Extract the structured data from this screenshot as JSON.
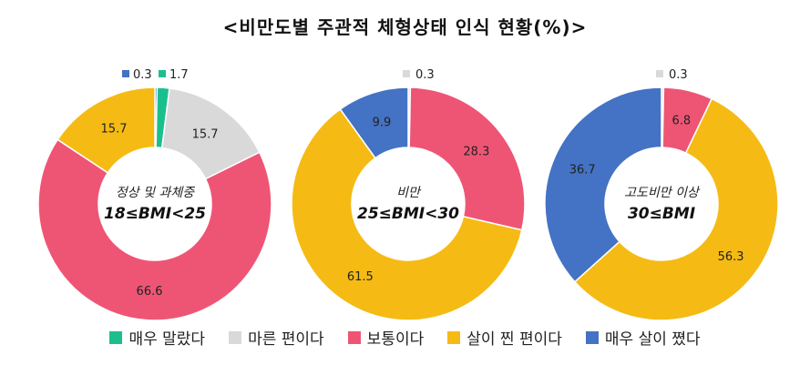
{
  "title": "<비만도별 주관적 체형상태 인식 현황(%)>",
  "colors": {
    "very_thin": "#1bbf8e",
    "thin": "#d9d9d9",
    "normal": "#ee5575",
    "little_fat": "#f5bb14",
    "very_fat": "#4472c4"
  },
  "legend": [
    {
      "key": "very_thin",
      "label": "매우 말랐다"
    },
    {
      "key": "thin",
      "label": "마른 편이다"
    },
    {
      "key": "normal",
      "label": "보통이다"
    },
    {
      "key": "little_fat",
      "label": "살이 찐 편이다"
    },
    {
      "key": "very_fat",
      "label": "매우 살이 쪘다"
    }
  ],
  "chart_data": [
    {
      "type": "pie",
      "center_line1": "정상 및 과체중",
      "center_line2": "18≤BMI<25",
      "slices": [
        {
          "key": "very_fat",
          "value": 0.3
        },
        {
          "key": "very_thin",
          "value": 1.7
        },
        {
          "key": "thin",
          "value": 15.7
        },
        {
          "key": "normal",
          "value": 66.6
        },
        {
          "key": "little_fat",
          "value": 15.7
        }
      ]
    },
    {
      "type": "pie",
      "center_line1": "비만",
      "center_line2": "25≤BMI<30",
      "slices": [
        {
          "key": "thin",
          "value": 0.3
        },
        {
          "key": "normal",
          "value": 28.3
        },
        {
          "key": "little_fat",
          "value": 61.5
        },
        {
          "key": "very_fat",
          "value": 9.9
        }
      ]
    },
    {
      "type": "pie",
      "center_line1": "고도비만 이상",
      "center_line2": "30≤BMI",
      "slices": [
        {
          "key": "thin",
          "value": 0.3
        },
        {
          "key": "normal",
          "value": 6.8
        },
        {
          "key": "little_fat",
          "value": 56.3
        },
        {
          "key": "very_fat",
          "value": 36.7
        }
      ]
    }
  ]
}
